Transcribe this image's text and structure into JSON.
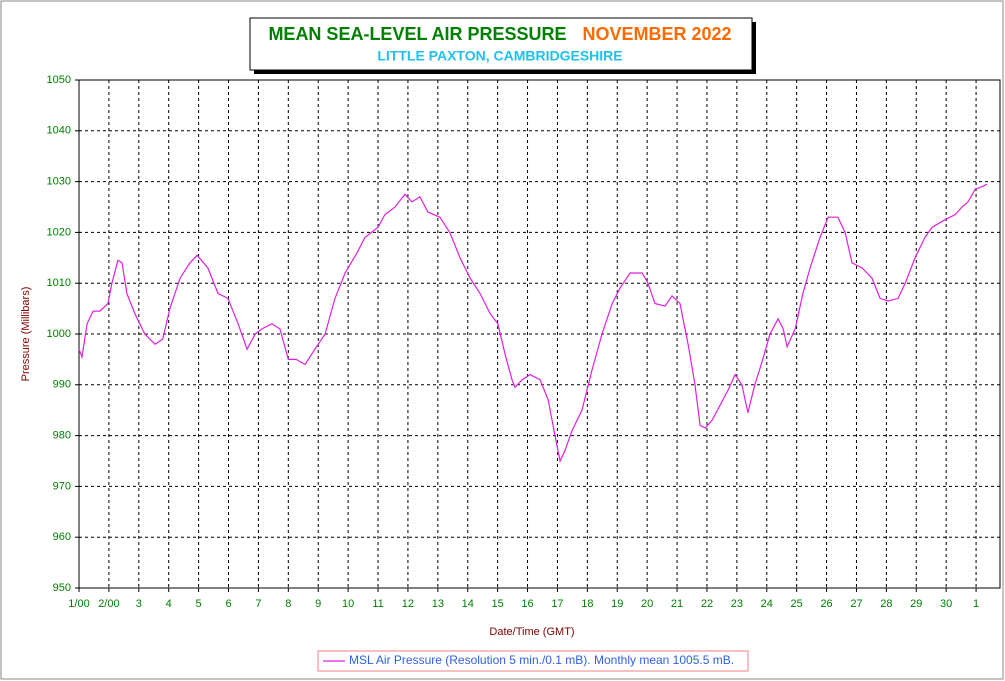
{
  "chart_data": {
    "type": "line",
    "title": "MEAN SEA-LEVEL AIR PRESSURE",
    "title_period": "NOVEMBER 2022",
    "subtitle": "LITTLE PAXTON, CAMBRIDGESHIRE",
    "x_label": "Date/Time (GMT)",
    "y_label": "Pressure (Millibars)",
    "xlim": [
      0,
      30.8
    ],
    "ylim": [
      950,
      1050
    ],
    "yticks": [
      950,
      960,
      970,
      980,
      990,
      1000,
      1010,
      1020,
      1030,
      1040,
      1050
    ],
    "xticks": [
      {
        "value": 0,
        "label": "1/00"
      },
      {
        "value": 1,
        "label": "2/00"
      },
      {
        "value": 2,
        "label": "3"
      },
      {
        "value": 3,
        "label": "4"
      },
      {
        "value": 4,
        "label": "5"
      },
      {
        "value": 5,
        "label": "6"
      },
      {
        "value": 6,
        "label": "7"
      },
      {
        "value": 7,
        "label": "8"
      },
      {
        "value": 8,
        "label": "9"
      },
      {
        "value": 9,
        "label": "10"
      },
      {
        "value": 10,
        "label": "11"
      },
      {
        "value": 11,
        "label": "12"
      },
      {
        "value": 12,
        "label": "13"
      },
      {
        "value": 13,
        "label": "14"
      },
      {
        "value": 14,
        "label": "15"
      },
      {
        "value": 15,
        "label": "16"
      },
      {
        "value": 16,
        "label": "17"
      },
      {
        "value": 17,
        "label": "18"
      },
      {
        "value": 18,
        "label": "19"
      },
      {
        "value": 19,
        "label": "20"
      },
      {
        "value": 20,
        "label": "21"
      },
      {
        "value": 21,
        "label": "22"
      },
      {
        "value": 22,
        "label": "23"
      },
      {
        "value": 23,
        "label": "24"
      },
      {
        "value": 24,
        "label": "25"
      },
      {
        "value": 25,
        "label": "26"
      },
      {
        "value": 26,
        "label": "27"
      },
      {
        "value": 27,
        "label": "28"
      },
      {
        "value": 28,
        "label": "29"
      },
      {
        "value": 29,
        "label": "30"
      },
      {
        "value": 30,
        "label": "1"
      }
    ],
    "grid": true,
    "x": [
      0,
      0.1,
      0.27,
      0.47,
      0.7,
      0.97,
      1.1,
      1.3,
      1.44,
      1.6,
      1.87,
      2.2,
      2.54,
      2.8,
      3.04,
      3.38,
      3.71,
      3.95,
      4.31,
      4.65,
      4.98,
      5.32,
      5.62,
      5.89,
      6.12,
      6.45,
      6.72,
      7.0,
      7.26,
      7.56,
      7.89,
      8.23,
      8.56,
      8.9,
      9.3,
      9.56,
      10.0,
      10.23,
      10.57,
      10.9,
      11.14,
      11.4,
      11.67,
      12.07,
      12.4,
      12.74,
      13.08,
      13.41,
      13.75,
      14.01,
      14.25,
      14.48,
      14.58,
      14.82,
      15.08,
      15.42,
      15.69,
      15.92,
      16.09,
      16.25,
      16.49,
      16.82,
      17.16,
      17.49,
      17.83,
      18.09,
      18.43,
      18.83,
      19.03,
      19.26,
      19.6,
      19.83,
      20.1,
      20.37,
      20.6,
      20.77,
      20.94,
      21.17,
      21.44,
      21.71,
      21.94,
      22.17,
      22.37,
      22.6,
      22.84,
      23.11,
      23.38,
      23.55,
      23.68,
      23.95,
      24.21,
      24.45,
      24.78,
      25.05,
      25.38,
      25.62,
      25.85,
      26.19,
      26.52,
      26.79,
      27.06,
      27.39,
      27.63,
      27.96,
      28.29,
      28.53,
      28.96,
      29.3,
      29.53,
      29.73,
      29.97,
      30.2,
      30.37
    ],
    "series": [
      {
        "name": "MSL Air Pressure (Resolution 5 min./0.1 mB). Monthly mean 1005.5 mB.",
        "color": "#e020e0",
        "values": [
          997,
          995.5,
          1002,
          1004.5,
          1004.5,
          1006,
          1010,
          1014.5,
          1014,
          1008,
          1004,
          1000,
          998,
          999,
          1005,
          1011,
          1014,
          1015.5,
          1013,
          1008,
          1007,
          1002,
          997,
          1000,
          1001,
          1002,
          1001,
          995,
          995,
          994,
          997,
          1000,
          1007,
          1012,
          1016,
          1019,
          1021,
          1023.5,
          1025,
          1027.5,
          1026,
          1027,
          1024,
          1023,
          1020,
          1015,
          1011,
          1008,
          1004,
          1002,
          996,
          991,
          989.5,
          991,
          992,
          991,
          987,
          980,
          975,
          977,
          981,
          985,
          993,
          1000,
          1006,
          1009,
          1012,
          1012,
          1010,
          1006,
          1005.5,
          1007.5,
          1006,
          998,
          990,
          982,
          981.5,
          983,
          986,
          989,
          992,
          990,
          984.5,
          990,
          994.5,
          1000,
          1003,
          1001,
          997.5,
          1001,
          1008,
          1013,
          1019,
          1023,
          1023,
          1020,
          1014,
          1013,
          1011,
          1007,
          1006.5,
          1007,
          1010,
          1015,
          1019,
          1021,
          1022.5,
          1023.5,
          1025,
          1026,
          1028.5,
          1029,
          1029.5
        ]
      }
    ]
  }
}
